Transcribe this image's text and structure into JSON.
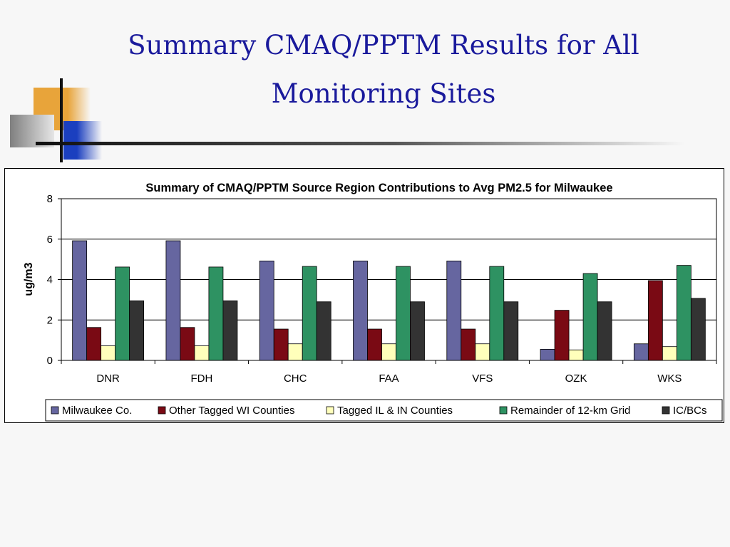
{
  "slide": {
    "title": "Summary CMAQ/PPTM Results for All Monitoring Sites"
  },
  "colors": {
    "title_text": "#1a1a9c",
    "decor_orange": "#e8a43a",
    "decor_blue": "#1b3fbf",
    "decor_gray": "#9a9a9a"
  },
  "chart_data": {
    "type": "bar",
    "title": "Summary of CMAQ/PPTM Source Region Contributions to Avg PM2.5 for Milwaukee",
    "xlabel": "",
    "ylabel": "ug/m3",
    "ylim": [
      0,
      8
    ],
    "yticks": [
      0,
      2,
      4,
      6,
      8
    ],
    "grid": true,
    "legend_position": "bottom",
    "categories": [
      "DNR",
      "FDH",
      "CHC",
      "FAA",
      "VFS",
      "OZK",
      "WKS"
    ],
    "series": [
      {
        "name": "Milwaukee Co.",
        "color": "#6666a0",
        "values": [
          5.92,
          5.92,
          4.92,
          4.92,
          4.92,
          0.55,
          0.82
        ]
      },
      {
        "name": "Other Tagged WI Counties",
        "color": "#7a0a14",
        "values": [
          1.63,
          1.63,
          1.55,
          1.55,
          1.55,
          2.48,
          3.95
        ]
      },
      {
        "name": "Tagged IL & IN Counties",
        "color": "#ffffbb",
        "values": [
          0.72,
          0.72,
          0.82,
          0.82,
          0.82,
          0.52,
          0.68
        ]
      },
      {
        "name": "Remainder of 12-km Grid",
        "color": "#2e9262",
        "values": [
          4.62,
          4.62,
          4.65,
          4.65,
          4.65,
          4.3,
          4.7
        ]
      },
      {
        "name": "IC/BCs",
        "color": "#333333",
        "values": [
          2.95,
          2.95,
          2.9,
          2.9,
          2.9,
          2.9,
          3.07
        ]
      }
    ]
  }
}
